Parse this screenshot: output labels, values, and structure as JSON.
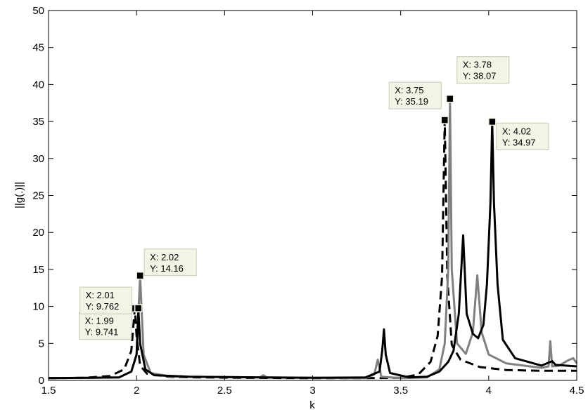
{
  "chart_data": {
    "type": "line",
    "title": "",
    "xlabel": "k",
    "ylabel": "||g(.)||",
    "xlim": [
      1.5,
      4.5
    ],
    "ylim": [
      0,
      50
    ],
    "xticks": [
      1.5,
      2,
      2.5,
      3,
      3.5,
      4,
      4.5
    ],
    "xtick_labels": [
      "1.5",
      "2",
      "2.5",
      "3",
      "3.5",
      "4",
      "4.5"
    ],
    "yticks": [
      0,
      5,
      10,
      15,
      20,
      25,
      30,
      35,
      40,
      45,
      50
    ],
    "ytick_labels": [
      "0",
      "5",
      "10",
      "15",
      "20",
      "25",
      "30",
      "35",
      "40",
      "45",
      "50"
    ],
    "grid": false,
    "legend": "none",
    "series": [
      {
        "style": "dashed",
        "color": "#000000",
        "points": [
          [
            1.5,
            0.3
          ],
          [
            1.7,
            0.35
          ],
          [
            1.85,
            0.6
          ],
          [
            1.93,
            1.5
          ],
          [
            1.97,
            4.0
          ],
          [
            1.99,
            9.741
          ],
          [
            2.0,
            6.0
          ],
          [
            2.02,
            2.0
          ],
          [
            2.06,
            0.9
          ],
          [
            2.2,
            0.45
          ],
          [
            2.6,
            0.35
          ],
          [
            3.0,
            0.3
          ],
          [
            3.3,
            0.3
          ],
          [
            3.5,
            0.35
          ],
          [
            3.6,
            0.8
          ],
          [
            3.67,
            2.5
          ],
          [
            3.71,
            6.0
          ],
          [
            3.735,
            14.0
          ],
          [
            3.75,
            35.19
          ],
          [
            3.765,
            14.0
          ],
          [
            3.79,
            4.8
          ],
          [
            3.84,
            2.8
          ],
          [
            3.95,
            1.8
          ],
          [
            4.1,
            1.4
          ],
          [
            4.3,
            1.3
          ],
          [
            4.5,
            1.3
          ]
        ]
      },
      {
        "style": "solid",
        "color": "#808080",
        "points": [
          [
            1.5,
            0.3
          ],
          [
            1.9,
            0.4
          ],
          [
            1.97,
            1.2
          ],
          [
            2.0,
            3.5
          ],
          [
            2.02,
            14.16
          ],
          [
            2.04,
            3.5
          ],
          [
            2.08,
            1.0
          ],
          [
            2.2,
            0.5
          ],
          [
            2.7,
            0.42
          ],
          [
            2.72,
            0.7
          ],
          [
            2.74,
            0.42
          ],
          [
            3.0,
            0.35
          ],
          [
            3.3,
            0.3
          ],
          [
            3.35,
            0.8
          ],
          [
            3.37,
            2.8
          ],
          [
            3.39,
            0.5
          ],
          [
            3.5,
            0.3
          ],
          [
            3.65,
            0.4
          ],
          [
            3.72,
            1.5
          ],
          [
            3.75,
            5.0
          ],
          [
            3.77,
            15.0
          ],
          [
            3.78,
            38.07
          ],
          [
            3.79,
            15.0
          ],
          [
            3.82,
            5.0
          ],
          [
            3.87,
            3.6
          ],
          [
            3.91,
            6.5
          ],
          [
            3.935,
            14.2
          ],
          [
            3.96,
            6.5
          ],
          [
            4.0,
            3.5
          ],
          [
            4.1,
            2.3
          ],
          [
            4.3,
            1.7
          ],
          [
            4.34,
            1.9
          ],
          [
            4.35,
            5.3
          ],
          [
            4.36,
            1.9
          ],
          [
            4.4,
            2.0
          ],
          [
            4.45,
            2.7
          ],
          [
            4.48,
            3.0
          ],
          [
            4.5,
            2.3
          ]
        ]
      },
      {
        "style": "solid",
        "color": "#000000",
        "points": [
          [
            1.5,
            0.3
          ],
          [
            1.9,
            0.4
          ],
          [
            1.97,
            1.2
          ],
          [
            2.0,
            3.5
          ],
          [
            2.01,
            9.762
          ],
          [
            2.02,
            5.0
          ],
          [
            2.05,
            1.5
          ],
          [
            2.1,
            0.7
          ],
          [
            2.3,
            0.5
          ],
          [
            2.7,
            0.4
          ],
          [
            3.0,
            0.35
          ],
          [
            3.3,
            0.4
          ],
          [
            3.38,
            1.2
          ],
          [
            3.395,
            4.0
          ],
          [
            3.405,
            6.9
          ],
          [
            3.415,
            3.5
          ],
          [
            3.44,
            1.0
          ],
          [
            3.55,
            0.4
          ],
          [
            3.65,
            0.5
          ],
          [
            3.72,
            1.2
          ],
          [
            3.77,
            2.5
          ],
          [
            3.8,
            4.0
          ],
          [
            3.83,
            9.0
          ],
          [
            3.855,
            19.6
          ],
          [
            3.875,
            9.0
          ],
          [
            3.91,
            6.3
          ],
          [
            3.94,
            5.7
          ],
          [
            3.97,
            7.5
          ],
          [
            3.99,
            13.0
          ],
          [
            4.01,
            24.0
          ],
          [
            4.02,
            34.97
          ],
          [
            4.03,
            24.0
          ],
          [
            4.05,
            13.0
          ],
          [
            4.08,
            5.5
          ],
          [
            4.15,
            3.0
          ],
          [
            4.3,
            2.0
          ],
          [
            4.36,
            2.6
          ],
          [
            4.38,
            2.1
          ],
          [
            4.5,
            1.9
          ]
        ]
      }
    ],
    "datatips": [
      {
        "x_val": 1.99,
        "y_val": 9.741,
        "line1": "X: 1.99",
        "line2": "Y: 9.741"
      },
      {
        "x_val": 2.02,
        "y_val": 14.16,
        "line1": "X: 2.02",
        "line2": "Y: 14.16"
      },
      {
        "x_val": 2.01,
        "y_val": 9.762,
        "line1": "X: 2.01",
        "line2": "Y: 9.762"
      },
      {
        "x_val": 3.75,
        "y_val": 35.19,
        "line1": "X: 3.75",
        "line2": "Y: 35.19"
      },
      {
        "x_val": 3.78,
        "y_val": 38.07,
        "line1": "X: 3.78",
        "line2": "Y: 38.07"
      },
      {
        "x_val": 4.02,
        "y_val": 34.97,
        "line1": "X: 4.02",
        "line2": "Y: 34.97"
      }
    ],
    "datatip_style": {
      "fill": "#f4f4e6",
      "border": "#c8c8b4"
    }
  }
}
